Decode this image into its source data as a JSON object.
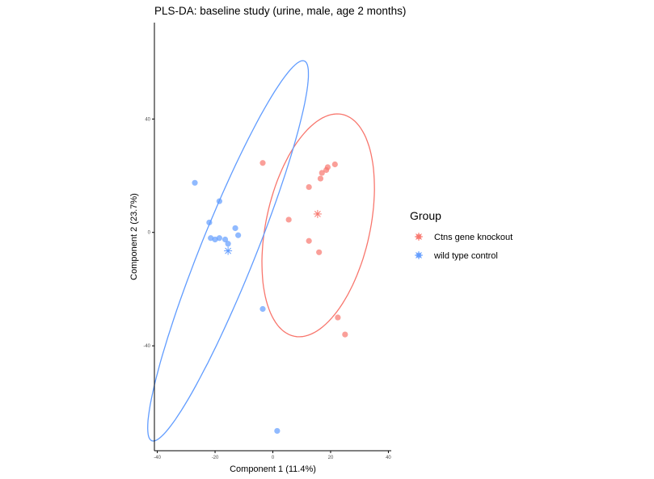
{
  "chart_data": {
    "type": "scatter",
    "title": "PLS-DA: baseline study (urine, male, age 2 months)",
    "xlabel": "Component 1 (11.4%)",
    "ylabel": "Component 2 (23.7%)",
    "xlim": [
      -41,
      41
    ],
    "ylim": [
      -77,
      74
    ],
    "xticks": [
      "-40",
      "-20",
      "0",
      "20",
      "40"
    ],
    "xtick_values": [
      -40,
      -20,
      0,
      20,
      40
    ],
    "yticks": [
      "40",
      "0",
      "-40"
    ],
    "ytick_values": [
      40,
      0,
      -40
    ],
    "grid": false,
    "legend": {
      "title": "Group",
      "position": "right"
    },
    "series": [
      {
        "name": "Ctns gene knockout",
        "color": "#F8766D",
        "centroid": [
          15.5,
          6.5
        ],
        "ellipse": {
          "center": [
            15.7,
            2.5
          ],
          "semi_axes": [
            40.0,
            18.0
          ],
          "angle_deg": 78
        },
        "points": [
          [
            -3.5,
            24.5
          ],
          [
            5.5,
            4.5
          ],
          [
            12.5,
            16.0
          ],
          [
            16.5,
            19.0
          ],
          [
            17.0,
            21.0
          ],
          [
            18.5,
            22.0
          ],
          [
            19.0,
            23.0
          ],
          [
            21.5,
            24.0
          ],
          [
            12.5,
            -3.0
          ],
          [
            16.0,
            -7.0
          ],
          [
            22.5,
            -30.0
          ],
          [
            25.0,
            -36.0
          ]
        ]
      },
      {
        "name": "wild type control",
        "color": "#619CFF",
        "centroid": [
          -15.5,
          -6.5
        ],
        "ellipse": {
          "center": [
            -15.5,
            -6.5
          ],
          "semi_axes": [
            72.0,
            9.5
          ],
          "angle_deg": 68.5
        },
        "points": [
          [
            -27.0,
            17.5
          ],
          [
            -18.5,
            11.0
          ],
          [
            -22.0,
            3.5
          ],
          [
            -21.5,
            -2.0
          ],
          [
            -20.0,
            -2.5
          ],
          [
            -18.5,
            -2.0
          ],
          [
            -16.5,
            -2.5
          ],
          [
            -15.5,
            -4.0
          ],
          [
            -13.0,
            1.5
          ],
          [
            -12.0,
            -1.0
          ],
          [
            -3.5,
            -27.0
          ],
          [
            1.5,
            -70.0
          ]
        ]
      }
    ]
  }
}
